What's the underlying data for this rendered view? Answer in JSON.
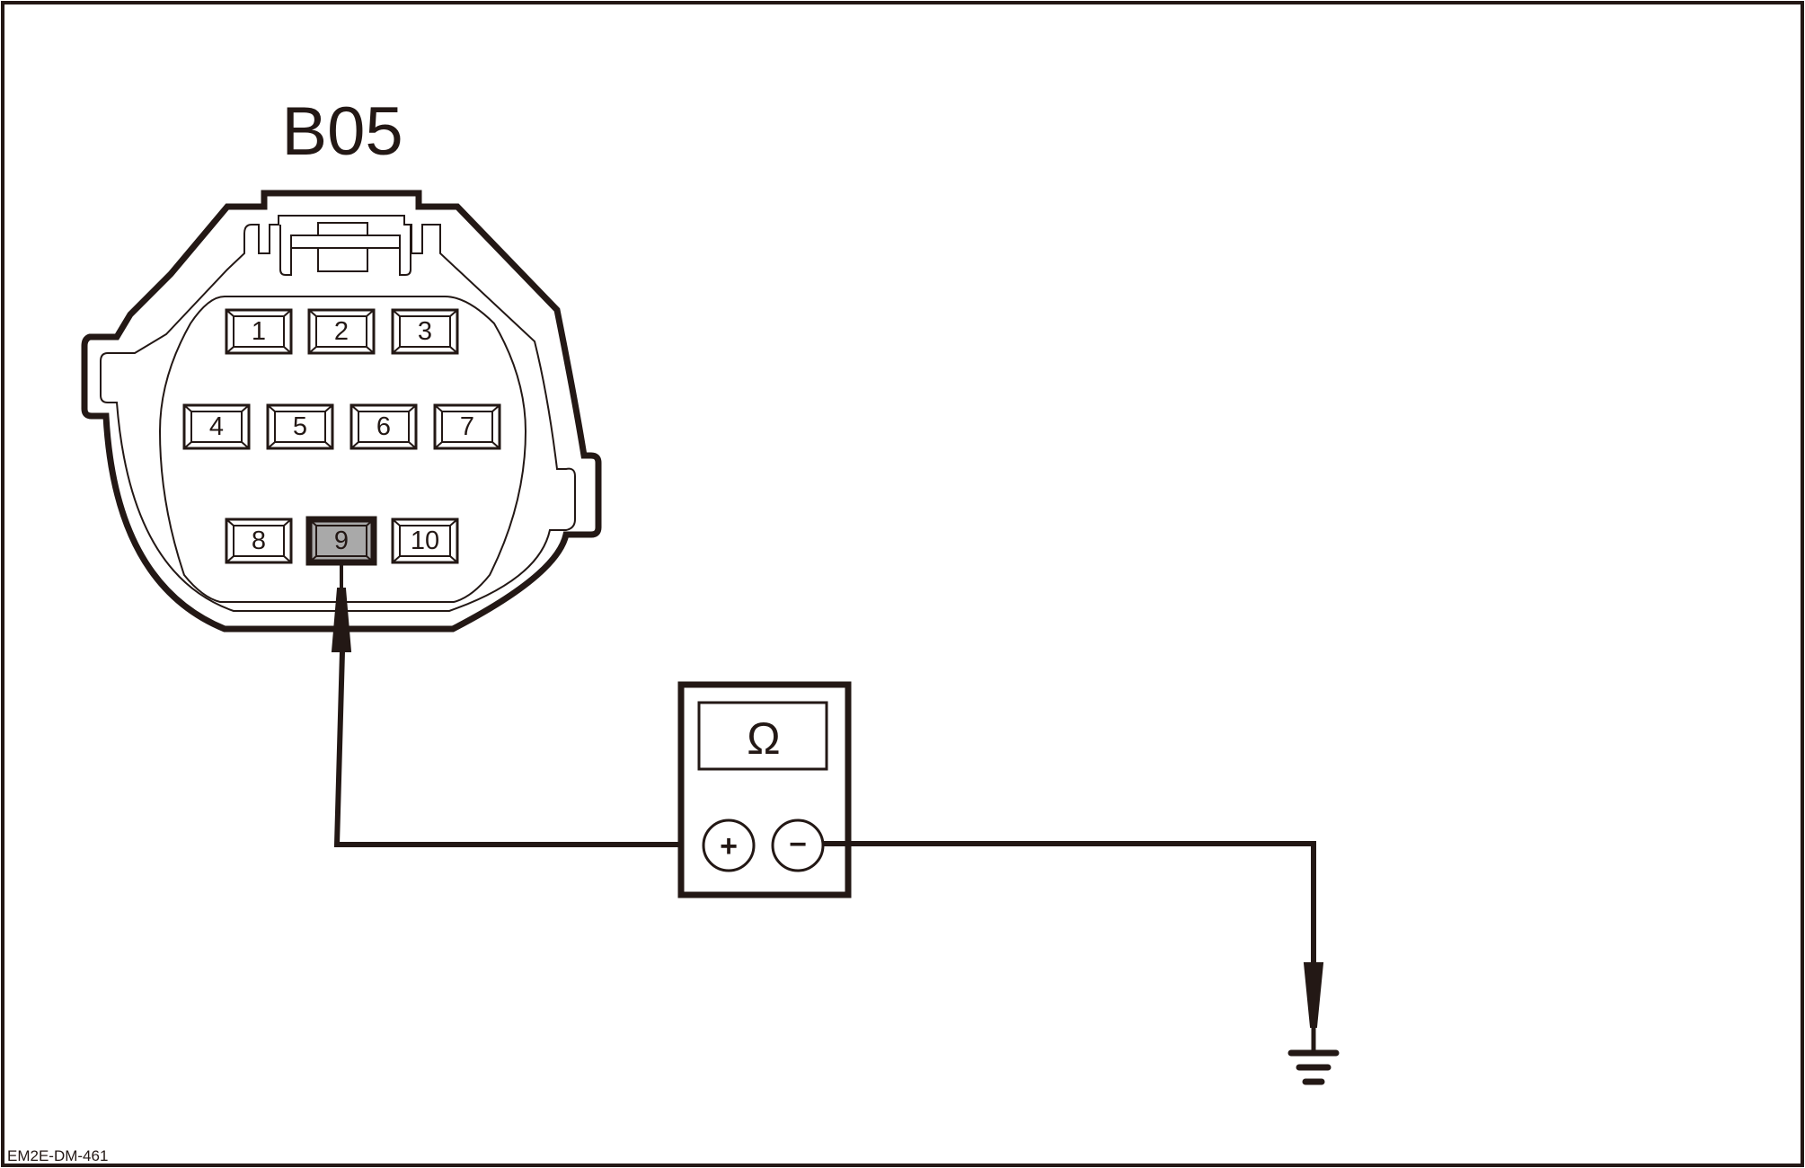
{
  "diagram": {
    "connector_label": "B05",
    "pins": [
      "1",
      "2",
      "3",
      "4",
      "5",
      "6",
      "7",
      "8",
      "9",
      "10"
    ],
    "highlighted_pin": "9",
    "meter_symbol": "Ω",
    "probe_positive": "+",
    "probe_negative": "−",
    "figure_code": "EM2E-DM-461",
    "colors": {
      "line": "#231815",
      "highlight": "#a9a9a9",
      "background": "#ffffff"
    }
  }
}
